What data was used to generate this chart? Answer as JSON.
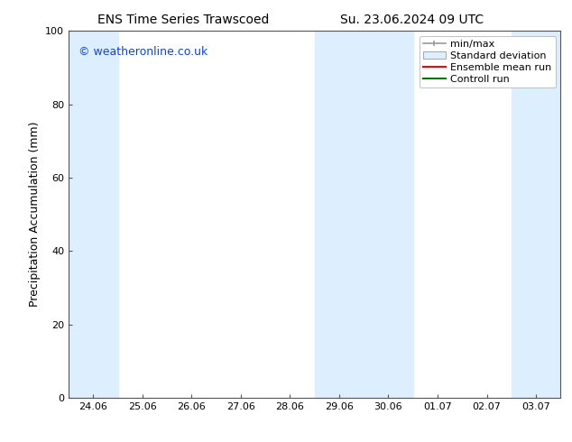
{
  "title_left": "ENS Time Series Trawscoed",
  "title_right": "Su. 23.06.2024 09 UTC",
  "ylabel": "Precipitation Accumulation (mm)",
  "ylim": [
    0,
    100
  ],
  "yticks": [
    0,
    20,
    40,
    60,
    80,
    100
  ],
  "x_tick_labels": [
    "24.06",
    "25.06",
    "26.06",
    "27.06",
    "28.06",
    "29.06",
    "30.06",
    "01.07",
    "02.07",
    "03.07"
  ],
  "x_tick_positions": [
    0,
    1,
    2,
    3,
    4,
    5,
    6,
    7,
    8,
    9
  ],
  "xlim": [
    -0.5,
    9.5
  ],
  "shaded_bands": [
    {
      "x_start": -0.5,
      "x_end": 0.5,
      "color": "#ddeeff"
    },
    {
      "x_start": 4.5,
      "x_end": 6.5,
      "color": "#ddeeff"
    },
    {
      "x_start": 8.5,
      "x_end": 9.5,
      "color": "#ddeeff"
    }
  ],
  "watermark_text": "© weatheronline.co.uk",
  "watermark_color": "#1144cc",
  "legend_labels": [
    "min/max",
    "Standard deviation",
    "Ensemble mean run",
    "Controll run"
  ],
  "legend_line_color": "#999999",
  "legend_std_color": "#ddeeff",
  "legend_ens_color": "#ff0000",
  "legend_ctrl_color": "#007700",
  "background_color": "#ffffff",
  "plot_bg_color": "#ffffff",
  "title_fontsize": 10,
  "ylabel_fontsize": 9,
  "tick_fontsize": 8,
  "watermark_fontsize": 9,
  "legend_fontsize": 8
}
